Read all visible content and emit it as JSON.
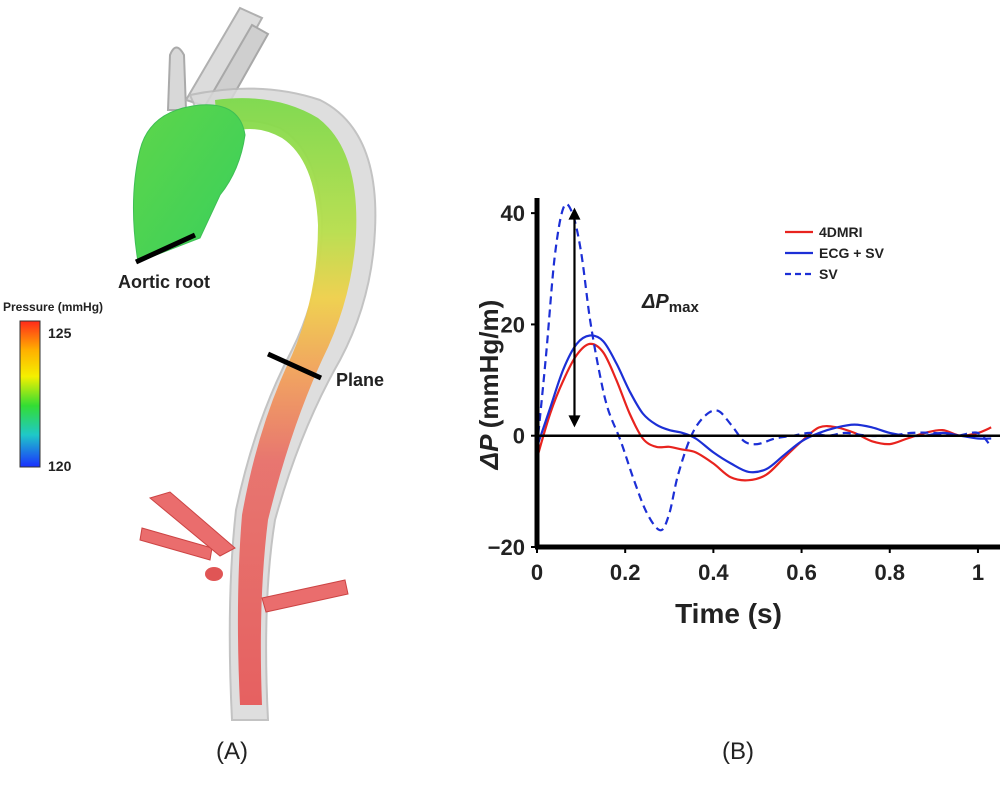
{
  "panel_a": {
    "caption": "(A)",
    "labels": {
      "aortic_root": "Aortic root",
      "plane": "Plane"
    },
    "colorbar": {
      "title": "Pressure (mmHg)",
      "max": "125",
      "min": "120",
      "stops": [
        "#ff2a1a",
        "#ffb000",
        "#f4f000",
        "#33dd33",
        "#1fc8c8",
        "#1a30ff"
      ]
    }
  },
  "panel_b": {
    "caption": "(B)"
  },
  "chart_data": {
    "type": "line",
    "xlabel": "Time (s)",
    "ylabel_symbol": "ΔP",
    "ylabel_unit": "(mmHg/m)",
    "xlim": [
      0,
      1.05
    ],
    "ylim": [
      -20,
      42
    ],
    "xticks": [
      0,
      0.2,
      0.4,
      0.6,
      0.8,
      1
    ],
    "xtick_labels": [
      "0",
      "0.2",
      "0.4",
      "0.6",
      "0.8",
      "1"
    ],
    "yticks": [
      -20,
      0,
      20,
      40
    ],
    "ytick_labels": [
      "−20",
      "0",
      "20",
      "40"
    ],
    "annotation": {
      "symbol": "ΔP",
      "subscript": "max",
      "x": 0.085,
      "y_from": 41,
      "y_to": 1.5
    },
    "legend_position": "top-right",
    "series": [
      {
        "name": "4DMRI",
        "color": "#e8231e",
        "style": "solid",
        "x": [
          0,
          0.03,
          0.06,
          0.09,
          0.12,
          0.15,
          0.18,
          0.21,
          0.24,
          0.27,
          0.3,
          0.33,
          0.36,
          0.4,
          0.44,
          0.48,
          0.52,
          0.56,
          0.6,
          0.64,
          0.68,
          0.72,
          0.76,
          0.8,
          0.84,
          0.88,
          0.92,
          0.96,
          1.0,
          1.03
        ],
        "y": [
          -4,
          4,
          10,
          14.5,
          16.5,
          15,
          10,
          4,
          -0.5,
          -2,
          -2,
          -2.5,
          -3,
          -5,
          -7.5,
          -8,
          -7,
          -4,
          -1,
          1.5,
          1.5,
          0.5,
          -1,
          -1.5,
          -0.5,
          0.5,
          1,
          0,
          0.5,
          1.5
        ]
      },
      {
        "name": "ECG + SV",
        "color": "#1c2fd6",
        "style": "solid",
        "x": [
          0,
          0.03,
          0.06,
          0.09,
          0.12,
          0.15,
          0.18,
          0.21,
          0.24,
          0.27,
          0.3,
          0.33,
          0.36,
          0.4,
          0.44,
          0.48,
          0.52,
          0.56,
          0.6,
          0.64,
          0.68,
          0.72,
          0.76,
          0.8,
          0.84,
          0.88,
          0.92,
          0.96,
          1.0,
          1.03
        ],
        "y": [
          -2,
          5,
          12,
          16.5,
          18,
          17,
          13,
          8,
          4,
          2,
          1,
          0.5,
          -0.5,
          -3,
          -5,
          -6.5,
          -6,
          -3.5,
          -1,
          0.5,
          1.5,
          2,
          1.5,
          0.5,
          0,
          0,
          0.5,
          0,
          -0.5,
          -0.5
        ]
      },
      {
        "name": "SV",
        "color": "#1c2fd6",
        "style": "dashed",
        "x": [
          0,
          0.02,
          0.04,
          0.06,
          0.08,
          0.1,
          0.12,
          0.14,
          0.16,
          0.19,
          0.22,
          0.25,
          0.28,
          0.3,
          0.32,
          0.35,
          0.38,
          0.41,
          0.44,
          0.47,
          0.5,
          0.54,
          0.58,
          0.62,
          0.66,
          0.7,
          0.75,
          0.8,
          0.85,
          0.9,
          0.95,
          1.0,
          1.03
        ],
        "y": [
          -2,
          14,
          32,
          41,
          40,
          33,
          21,
          12,
          5,
          -1,
          -8,
          -14,
          -17,
          -14,
          -7,
          0,
          3.5,
          4.5,
          2,
          -1,
          -1.5,
          -0.5,
          0,
          0.5,
          0,
          0.5,
          0,
          0,
          0.5,
          0.5,
          0,
          0.5,
          -2
        ]
      }
    ]
  }
}
